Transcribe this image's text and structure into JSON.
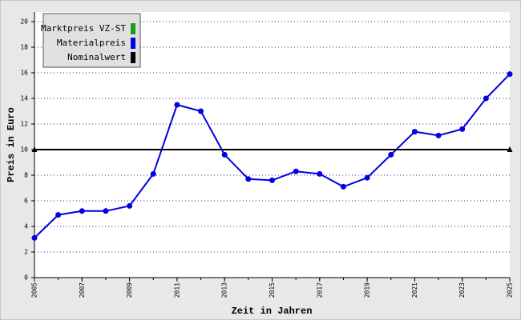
{
  "chart_data": {
    "type": "line",
    "x_label": "Zeit in Jahren",
    "y_label": "Preis in Euro",
    "x": [
      2005,
      2006,
      2007,
      2008,
      2009,
      2010,
      2011,
      2012,
      2013,
      2014,
      2015,
      2016,
      2017,
      2018,
      2019,
      2020,
      2021,
      2022,
      2023,
      2024,
      2025
    ],
    "series": [
      {
        "name": "Marktpreis VZ-ST",
        "color": "#1a9a1a",
        "values": [
          null,
          null,
          null,
          null,
          null,
          null,
          null,
          null,
          null,
          null,
          null,
          null,
          null,
          null,
          null,
          null,
          null,
          null,
          null,
          null,
          null
        ]
      },
      {
        "name": "Materialpreis",
        "color": "#0000e0",
        "values": [
          3.1,
          4.9,
          5.2,
          5.2,
          5.6,
          8.1,
          13.5,
          13.0,
          9.6,
          7.7,
          7.6,
          8.3,
          8.1,
          7.1,
          7.8,
          9.6,
          11.4,
          11.1,
          11.6,
          14.0,
          15.9
        ]
      },
      {
        "name": "Nominalwert",
        "color": "#000000",
        "x": [
          2005,
          2025
        ],
        "values": [
          10,
          10
        ]
      }
    ],
    "xlim": [
      2005,
      2025
    ],
    "xticks": [
      2005,
      2007,
      2009,
      2011,
      2013,
      2015,
      2017,
      2019,
      2021,
      2023,
      2025
    ],
    "ylim": [
      0,
      20
    ],
    "yticks": [
      0,
      2,
      4,
      6,
      8,
      10,
      12,
      14,
      16,
      18,
      20
    ],
    "grid": true
  }
}
